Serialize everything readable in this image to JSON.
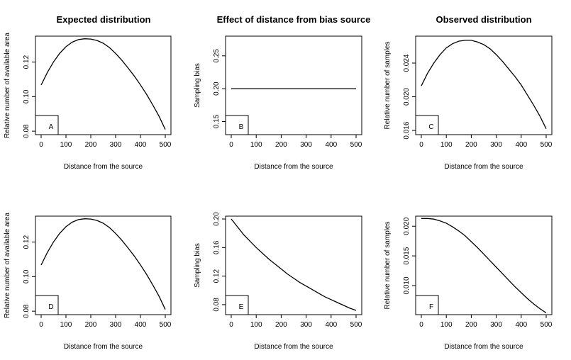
{
  "column_titles": [
    "Expected distribution",
    "Effect of distance from bias source",
    "Observed distribution"
  ],
  "chart_data": [
    {
      "type": "line",
      "panel_label": "A",
      "xlabel": "Distance from the source",
      "ylabel": "Relative number of available area",
      "xlim": [
        0,
        500
      ],
      "ylim": [
        0.078,
        0.135
      ],
      "x_ticks": [
        0,
        100,
        200,
        300,
        400,
        500
      ],
      "y_ticks": [
        0.08,
        0.1,
        0.12
      ],
      "x": [
        0,
        25,
        50,
        75,
        100,
        125,
        150,
        175,
        200,
        225,
        250,
        275,
        300,
        325,
        350,
        375,
        400,
        425,
        450,
        475,
        500
      ],
      "y": [
        0.1067,
        0.114,
        0.1201,
        0.1251,
        0.1289,
        0.1315,
        0.133,
        0.1335,
        0.1333,
        0.1325,
        0.1309,
        0.1284,
        0.125,
        0.121,
        0.1166,
        0.1119,
        0.1068,
        0.1012,
        0.0951,
        0.0886,
        0.081
      ]
    },
    {
      "type": "line",
      "panel_label": "B",
      "xlabel": "Distance from the source",
      "ylabel": "Sampling bias",
      "xlim": [
        0,
        500
      ],
      "ylim": [
        0.13,
        0.28
      ],
      "x_ticks": [
        0,
        100,
        200,
        300,
        400,
        500
      ],
      "y_ticks": [
        0.15,
        0.2,
        0.25
      ],
      "x": [
        0,
        500
      ],
      "y": [
        0.2,
        0.2
      ]
    },
    {
      "type": "line",
      "panel_label": "C",
      "xlabel": "Distance from the source",
      "ylabel": "Relative number of samples",
      "xlim": [
        0,
        500
      ],
      "ylim": [
        0.0155,
        0.0272
      ],
      "x_ticks": [
        0,
        100,
        200,
        300,
        400,
        500
      ],
      "y_ticks": [
        0.016,
        0.02,
        0.024
      ],
      "x": [
        0,
        25,
        50,
        75,
        100,
        125,
        150,
        175,
        200,
        225,
        250,
        275,
        300,
        325,
        350,
        375,
        400,
        425,
        450,
        475,
        500
      ],
      "y": [
        0.0213,
        0.0228,
        0.024,
        0.025,
        0.0258,
        0.0263,
        0.0266,
        0.0267,
        0.0267,
        0.0265,
        0.0262,
        0.0257,
        0.025,
        0.0242,
        0.0233,
        0.0224,
        0.0214,
        0.0202,
        0.019,
        0.0177,
        0.0162
      ]
    },
    {
      "type": "line",
      "panel_label": "D",
      "xlabel": "Distance from the source",
      "ylabel": "Relative number of available area",
      "xlim": [
        0,
        500
      ],
      "ylim": [
        0.078,
        0.135
      ],
      "x_ticks": [
        0,
        100,
        200,
        300,
        400,
        500
      ],
      "y_ticks": [
        0.08,
        0.1,
        0.12
      ],
      "x": [
        0,
        25,
        50,
        75,
        100,
        125,
        150,
        175,
        200,
        225,
        250,
        275,
        300,
        325,
        350,
        375,
        400,
        425,
        450,
        475,
        500
      ],
      "y": [
        0.1067,
        0.114,
        0.1201,
        0.1251,
        0.1289,
        0.1315,
        0.133,
        0.1335,
        0.1333,
        0.1325,
        0.1309,
        0.1284,
        0.125,
        0.121,
        0.1166,
        0.1119,
        0.1068,
        0.1012,
        0.0951,
        0.0886,
        0.081
      ]
    },
    {
      "type": "line",
      "panel_label": "E",
      "xlabel": "Distance from the source",
      "ylabel": "Sampling bias",
      "xlim": [
        0,
        500
      ],
      "ylim": [
        0.066,
        0.204
      ],
      "x_ticks": [
        0,
        100,
        200,
        300,
        400,
        500
      ],
      "y_ticks": [
        0.08,
        0.12,
        0.16,
        0.2
      ],
      "x": [
        0,
        25,
        50,
        75,
        100,
        125,
        150,
        175,
        200,
        225,
        250,
        275,
        300,
        325,
        350,
        375,
        400,
        425,
        450,
        475,
        500
      ],
      "y": [
        0.2,
        0.189,
        0.178,
        0.169,
        0.16,
        0.152,
        0.144,
        0.137,
        0.13,
        0.123,
        0.117,
        0.111,
        0.106,
        0.101,
        0.096,
        0.091,
        0.087,
        0.083,
        0.079,
        0.075,
        0.072
      ]
    },
    {
      "type": "line",
      "panel_label": "F",
      "xlabel": "Distance from the source",
      "ylabel": "Relative number of samples",
      "xlim": [
        0,
        500
      ],
      "ylim": [
        0.0051,
        0.0217
      ],
      "x_ticks": [
        0,
        100,
        200,
        300,
        400,
        500
      ],
      "y_ticks": [
        0.01,
        0.015,
        0.02
      ],
      "x": [
        0,
        25,
        50,
        75,
        100,
        125,
        150,
        175,
        200,
        225,
        250,
        275,
        300,
        325,
        350,
        375,
        400,
        425,
        450,
        475,
        500
      ],
      "y": [
        0.0213,
        0.0213,
        0.0212,
        0.0209,
        0.0205,
        0.0199,
        0.0192,
        0.0184,
        0.0174,
        0.0164,
        0.0153,
        0.0142,
        0.0131,
        0.012,
        0.0109,
        0.0098,
        0.0088,
        0.0078,
        0.0069,
        0.0061,
        0.0054
      ]
    }
  ]
}
